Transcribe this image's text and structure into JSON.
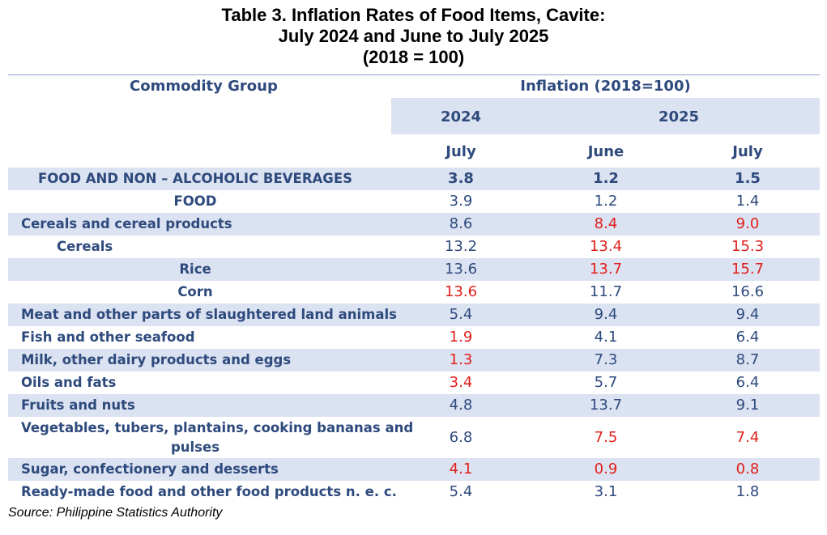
{
  "title": {
    "line1": "Table 3.  Inflation Rates of Food Items, Cavite:",
    "line2": "July 2024 and June to July 2025",
    "line3": "(2018 = 100)"
  },
  "header": {
    "commodity_group": "Commodity Group",
    "inflation": "Inflation (2018=100)",
    "year_2024": "2024",
    "year_2025": "2025",
    "month_2024_july": "July",
    "month_2025_june": "June",
    "month_2025_july": "July"
  },
  "colors": {
    "text_blue": "#2e4a7d",
    "highlight_red": "#e0201b",
    "band": "#dbe2f1"
  },
  "rows": [
    {
      "label": "FOOD AND NON – ALCOHOLIC BEVERAGES",
      "v2024_july": "3.8",
      "v2025_june": "1.2",
      "v2025_july": "1.5"
    },
    {
      "label": "FOOD",
      "v2024_july": "3.9",
      "v2025_june": "1.2",
      "v2025_july": "1.4"
    },
    {
      "label": "Cereals and cereal products",
      "v2024_july": "8.6",
      "v2025_june": "8.4",
      "v2025_july": "9.0"
    },
    {
      "label": "Cereals",
      "v2024_july": "13.2",
      "v2025_june": "13.4",
      "v2025_july": "15.3"
    },
    {
      "label": "Rice",
      "v2024_july": "13.6",
      "v2025_june": "13.7",
      "v2025_july": "15.7"
    },
    {
      "label": "Corn",
      "v2024_july": "13.6",
      "v2025_june": "11.7",
      "v2025_july": "16.6"
    },
    {
      "label": "Meat and other parts of slaughtered land animals",
      "v2024_july": "5.4",
      "v2025_june": "9.4",
      "v2025_july": "9.4"
    },
    {
      "label": "Fish and other seafood",
      "v2024_july": "1.9",
      "v2025_june": "4.1",
      "v2025_july": "6.4"
    },
    {
      "label": "Milk, other dairy products and eggs",
      "v2024_july": "1.3",
      "v2025_june": "7.3",
      "v2025_july": "8.7"
    },
    {
      "label": "Oils and fats",
      "v2024_july": "3.4",
      "v2025_june": "5.7",
      "v2025_july": "6.4"
    },
    {
      "label": "Fruits and nuts",
      "v2024_july": "4.8",
      "v2025_june": "13.7",
      "v2025_july": "9.1"
    },
    {
      "label_line1": "Vegetables, tubers, plantains, cooking bananas and",
      "label_line2": "pulses",
      "v2024_july": "6.8",
      "v2025_june": "7.5",
      "v2025_july": "7.4"
    },
    {
      "label": "Sugar, confectionery and desserts",
      "v2024_july": "4.1",
      "v2025_june": "0.9",
      "v2025_july": "0.8"
    },
    {
      "label": "Ready-made food and other food products n. e. c.",
      "v2024_july": "5.4",
      "v2025_june": "3.1",
      "v2025_july": "1.8"
    }
  ],
  "source": "Source: Philippine Statistics Authority"
}
